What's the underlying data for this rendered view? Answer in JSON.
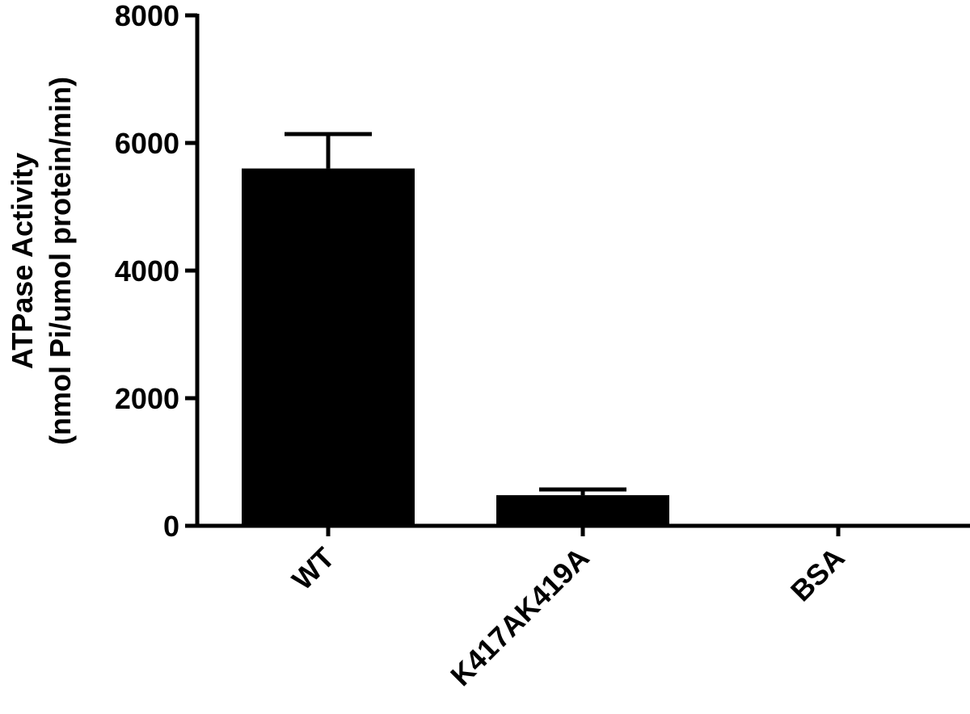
{
  "chart_data": {
    "type": "bar",
    "categories": [
      "WT",
      "K417AK419A",
      "BSA"
    ],
    "values": [
      5600,
      480,
      0
    ],
    "error_upper": [
      6140,
      570,
      0
    ],
    "ylabel_line1": "ATPase Activity",
    "ylabel_line2": "(nmol Pi/umol protein/min)",
    "xlabel": "",
    "title": "",
    "ylim": [
      0,
      8000
    ],
    "yticks": [
      0,
      2000,
      4000,
      6000,
      8000
    ],
    "grid": false,
    "bar_color": "#000000"
  }
}
